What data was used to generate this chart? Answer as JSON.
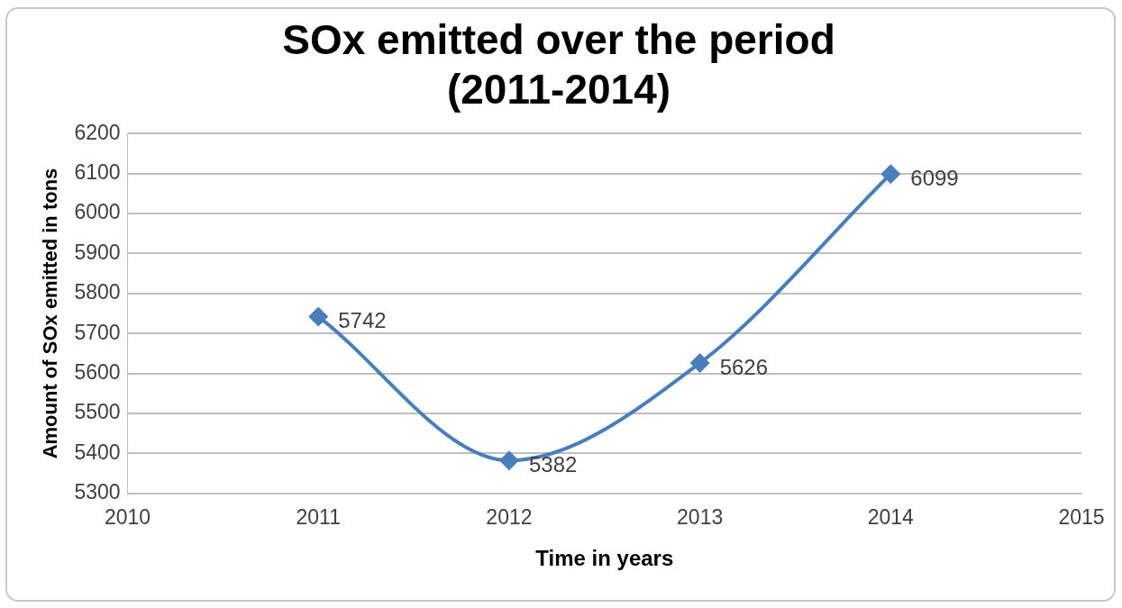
{
  "chart_data": {
    "type": "line",
    "title": "SOx emitted over the period\n(2011-2014)",
    "xlabel": "Time in years",
    "ylabel": "Amount of SOx emitted in tons",
    "x": [
      2011,
      2012,
      2013,
      2014
    ],
    "series": [
      {
        "color": "#4a7ebb",
        "values": [
          5742,
          5382,
          5626,
          6099
        ]
      }
    ],
    "xlim": [
      2010,
      2015
    ],
    "xticks": [
      2010,
      2011,
      2012,
      2013,
      2014,
      2015
    ],
    "ylim": [
      5300,
      6200
    ],
    "yticks": [
      5300,
      5400,
      5500,
      5600,
      5700,
      5800,
      5900,
      6000,
      6100,
      6200
    ],
    "grid": "y",
    "legend": false,
    "marker": "diamond",
    "line_style": "solid",
    "data_labels": true
  }
}
